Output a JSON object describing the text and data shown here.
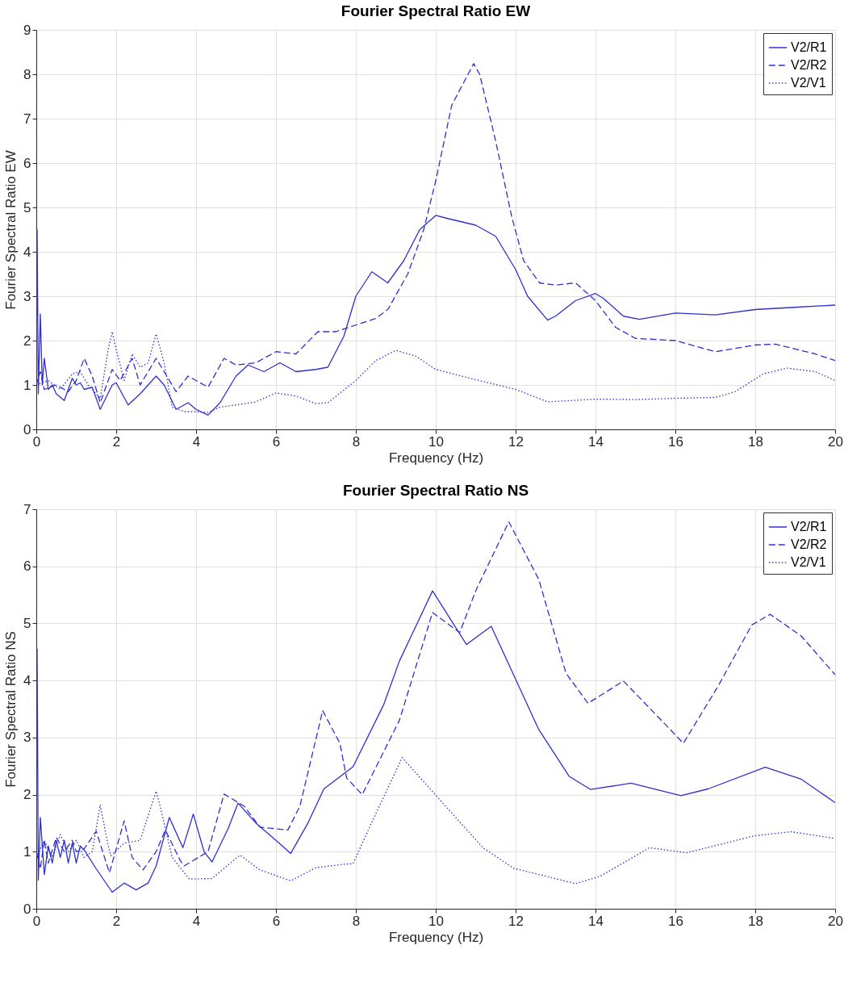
{
  "chart_data": [
    {
      "type": "line",
      "title": "Fourier Spectral Ratio EW",
      "xlabel": "Frequency (Hz)",
      "ylabel": "Fourier Spectral Ratio EW",
      "xlim": [
        0,
        20
      ],
      "ylim": [
        0,
        9
      ],
      "xticks": [
        0,
        2,
        4,
        6,
        8,
        10,
        12,
        14,
        16,
        18,
        20
      ],
      "yticks": [
        0,
        1,
        2,
        3,
        4,
        5,
        6,
        7,
        8,
        9
      ],
      "grid": true,
      "legend": "top right",
      "series": [
        {
          "name": "V2/R1",
          "color": "#2f2fd0",
          "line_style": "solid",
          "x": [
            0,
            0.02,
            0.05,
            0.1,
            0.15,
            0.2,
            0.3,
            0.4,
            0.5,
            0.7,
            0.9,
            1.0,
            1.1,
            1.2,
            1.4,
            1.6,
            1.9,
            2.0,
            2.3,
            2.6,
            3.0,
            3.2,
            3.5,
            3.8,
            4.0,
            4.3,
            4.6,
            5.0,
            5.3,
            5.7,
            6.1,
            6.5,
            7.0,
            7.3,
            7.7,
            8.0,
            8.4,
            8.8,
            9.2,
            9.6,
            10.0,
            10.3,
            11.0,
            11.5,
            12.0,
            12.3,
            12.8,
            13.0,
            13.5,
            14.0,
            14.2,
            14.7,
            15.1,
            16.0,
            17.0,
            18.0,
            19.0,
            20.0
          ],
          "values": [
            1.0,
            4.5,
            0.8,
            2.6,
            1.0,
            1.6,
            0.9,
            1.0,
            0.8,
            0.65,
            1.15,
            1.0,
            1.05,
            0.9,
            0.95,
            0.45,
            1.0,
            1.05,
            0.55,
            0.8,
            1.2,
            1.0,
            0.45,
            0.6,
            0.45,
            0.32,
            0.6,
            1.2,
            1.45,
            1.3,
            1.5,
            1.3,
            1.35,
            1.4,
            2.1,
            3.0,
            3.55,
            3.3,
            3.8,
            4.5,
            4.82,
            4.75,
            4.6,
            4.35,
            3.6,
            3.0,
            2.46,
            2.55,
            2.9,
            3.06,
            2.95,
            2.55,
            2.48,
            2.62,
            2.58,
            2.7,
            2.75,
            2.8
          ]
        },
        {
          "name": "V2/R2",
          "color": "#2f2fd0",
          "line_style": "dashed",
          "x": [
            0,
            0.1,
            0.2,
            0.5,
            0.8,
            1.0,
            1.2,
            1.4,
            1.6,
            1.9,
            2.1,
            2.4,
            2.6,
            2.8,
            3.0,
            3.2,
            3.5,
            3.8,
            4.0,
            4.3,
            4.7,
            5.0,
            5.5,
            6.0,
            6.5,
            7.05,
            7.5,
            8.0,
            8.5,
            8.8,
            9.3,
            9.7,
            10.0,
            10.4,
            10.95,
            11.1,
            11.5,
            11.9,
            12.2,
            12.6,
            13.0,
            13.5,
            14.0,
            14.5,
            15.0,
            16.0,
            17.0,
            18.0,
            18.5,
            19.5,
            20.0
          ],
          "values": [
            1.0,
            1.3,
            0.9,
            1.0,
            0.85,
            1.1,
            1.6,
            1.2,
            0.6,
            1.35,
            1.1,
            1.6,
            1.0,
            1.3,
            1.6,
            1.3,
            0.85,
            1.2,
            1.1,
            0.95,
            1.6,
            1.45,
            1.5,
            1.75,
            1.7,
            2.2,
            2.2,
            2.35,
            2.5,
            2.7,
            3.5,
            4.5,
            5.6,
            7.3,
            8.24,
            8.0,
            6.5,
            4.8,
            3.8,
            3.3,
            3.25,
            3.3,
            2.9,
            2.3,
            2.05,
            2.0,
            1.75,
            1.9,
            1.92,
            1.7,
            1.55
          ]
        },
        {
          "name": "V2/V1",
          "color": "#2f2fd0",
          "line_style": "dotted",
          "x": [
            0,
            0.3,
            0.6,
            0.9,
            1.1,
            1.3,
            1.6,
            1.8,
            1.9,
            2.0,
            2.2,
            2.4,
            2.6,
            2.8,
            3.0,
            3.2,
            3.4,
            3.7,
            4.0,
            4.3,
            4.6,
            5.0,
            5.5,
            6.0,
            6.5,
            7.0,
            7.3,
            8.0,
            8.5,
            9.0,
            9.5,
            10.0,
            11.0,
            12.0,
            12.8,
            14.0,
            15.0,
            16.0,
            17.0,
            17.5,
            18.2,
            18.8,
            19.5,
            20.0
          ],
          "values": [
            1.0,
            1.1,
            0.9,
            1.25,
            1.3,
            1.0,
            0.7,
            1.8,
            2.2,
            1.8,
            1.1,
            1.7,
            1.4,
            1.5,
            2.15,
            1.5,
            0.5,
            0.4,
            0.4,
            0.38,
            0.5,
            0.55,
            0.62,
            0.82,
            0.75,
            0.58,
            0.6,
            1.1,
            1.55,
            1.78,
            1.65,
            1.35,
            1.12,
            0.9,
            0.62,
            0.68,
            0.67,
            0.7,
            0.72,
            0.85,
            1.25,
            1.38,
            1.3,
            1.1
          ]
        }
      ]
    },
    {
      "type": "line",
      "title": "Fourier Spectral Ratio NS",
      "xlabel": "Frequency (Hz)",
      "ylabel": "Fourier Spectral Ratio NS",
      "xlim": [
        0,
        20
      ],
      "ylim": [
        0,
        7
      ],
      "xticks": [
        0,
        2,
        4,
        6,
        8,
        10,
        12,
        14,
        16,
        18,
        20
      ],
      "yticks": [
        0,
        1,
        2,
        3,
        4,
        5,
        6,
        7
      ],
      "grid": true,
      "legend": "top right",
      "series": [
        {
          "name": "V2/R1",
          "color": "#2f2fd0",
          "line_style": "solid",
          "x": [
            0,
            0.02,
            0.05,
            0.1,
            0.2,
            0.3,
            0.4,
            0.5,
            0.6,
            0.7,
            0.8,
            0.9,
            1.0,
            1.1,
            1.2,
            1.5,
            1.9,
            2.2,
            2.5,
            2.8,
            3.0,
            3.33,
            3.67,
            3.93,
            4.2,
            4.4,
            4.8,
            5.05,
            5.5,
            6.0,
            6.37,
            6.8,
            7.2,
            7.93,
            8.7,
            9.09,
            9.92,
            10.77,
            11.39,
            12.58,
            13.34,
            13.88,
            14.89,
            16.14,
            16.82,
            18.25,
            19.15,
            20.0
          ],
          "values": [
            1.0,
            4.55,
            0.5,
            1.6,
            0.6,
            1.1,
            0.8,
            1.2,
            0.9,
            1.2,
            0.8,
            1.15,
            0.8,
            1.1,
            1.03,
            0.7,
            0.29,
            0.45,
            0.33,
            0.45,
            0.75,
            1.6,
            1.07,
            1.66,
            1.0,
            0.82,
            1.4,
            1.85,
            1.5,
            1.2,
            0.97,
            1.5,
            2.1,
            2.49,
            3.58,
            4.34,
            5.57,
            4.63,
            4.95,
            3.14,
            2.32,
            2.09,
            2.2,
            1.98,
            2.1,
            2.48,
            2.27,
            1.86
          ]
        },
        {
          "name": "V2/R2",
          "color": "#2f2fd0",
          "line_style": "dashed",
          "x": [
            0,
            0.1,
            0.2,
            0.3,
            0.5,
            0.7,
            0.9,
            1.0,
            1.2,
            1.5,
            1.83,
            2.2,
            2.4,
            2.67,
            3.0,
            3.23,
            3.6,
            3.7,
            4.3,
            4.7,
            5.2,
            5.6,
            6.3,
            6.6,
            7.17,
            7.6,
            7.77,
            8.16,
            9.09,
            9.92,
            10.6,
            11.02,
            11.83,
            12.58,
            13.26,
            13.81,
            14.7,
            15.35,
            16.2,
            17.07,
            17.91,
            18.37,
            19.15,
            20.0
          ],
          "values": [
            1.0,
            0.7,
            1.2,
            0.8,
            1.25,
            1.0,
            1.2,
            1.0,
            1.05,
            1.36,
            0.63,
            1.54,
            0.9,
            0.68,
            1.0,
            1.38,
            0.85,
            0.75,
            1.0,
            2.01,
            1.8,
            1.43,
            1.38,
            1.8,
            3.47,
            2.9,
            2.29,
            2.0,
            3.3,
            5.19,
            4.84,
            5.6,
            6.78,
            5.77,
            4.13,
            3.6,
            3.99,
            3.52,
            2.9,
            3.9,
            4.97,
            5.16,
            4.78,
            4.1
          ]
        },
        {
          "name": "V2/V1",
          "color": "#2f2fd0",
          "line_style": "dotted",
          "x": [
            0,
            0.2,
            0.4,
            0.6,
            0.8,
            1.0,
            1.2,
            1.4,
            1.6,
            1.8,
            1.87,
            2.2,
            2.6,
            3.0,
            3.1,
            3.4,
            3.83,
            4.4,
            5.1,
            5.6,
            6.37,
            7.0,
            7.7,
            7.93,
            8.39,
            9.16,
            10.0,
            11.18,
            11.95,
            13.5,
            14.12,
            15.35,
            16.28,
            17.99,
            18.9,
            20.0
          ],
          "values": [
            0.9,
            1.2,
            0.9,
            1.3,
            1.0,
            1.2,
            0.9,
            1.0,
            1.82,
            1.1,
            0.93,
            1.15,
            1.2,
            2.06,
            1.8,
            0.9,
            0.52,
            0.53,
            0.94,
            0.68,
            0.49,
            0.72,
            0.78,
            0.79,
            1.5,
            2.65,
            1.99,
            1.07,
            0.71,
            0.44,
            0.57,
            1.07,
            0.98,
            1.28,
            1.35,
            1.23
          ]
        }
      ]
    }
  ]
}
